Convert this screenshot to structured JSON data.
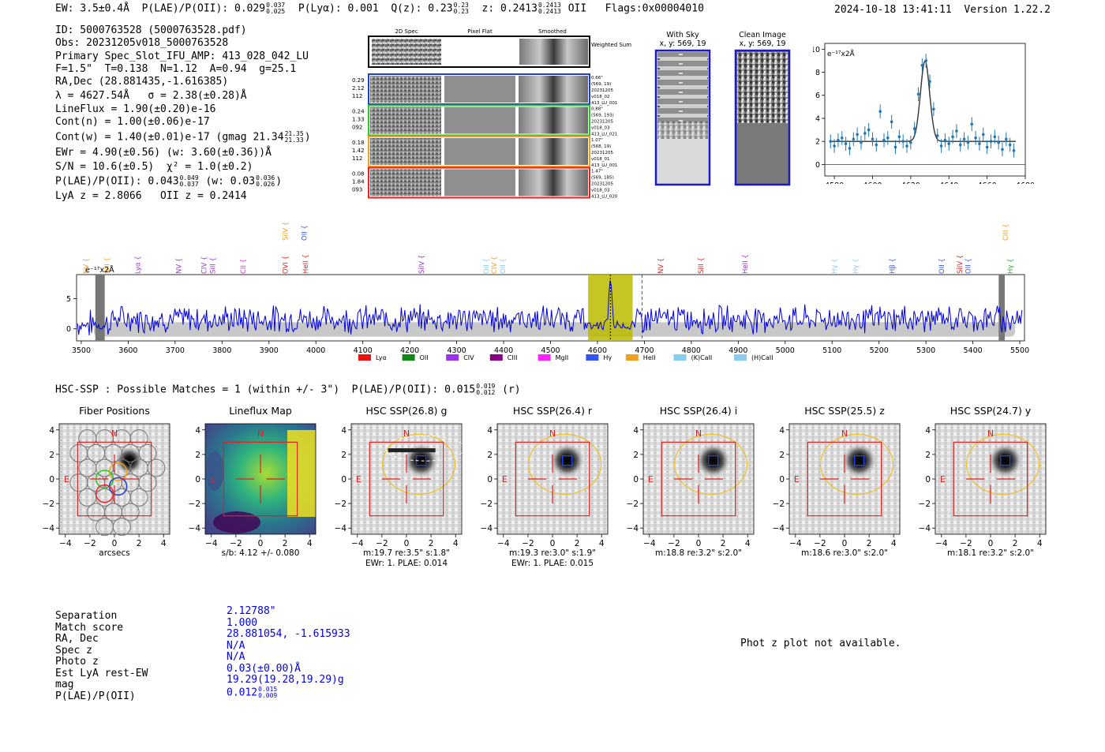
{
  "header": {
    "ew_label": "EW:",
    "ew_value": "3.5±0.4Å",
    "plae_label": "P(LAE)/P(OII):",
    "plae_value": "0.029",
    "plae_hi": "0.037",
    "plae_lo": "0.025",
    "plya_label": "P(Lyα):",
    "plya_value": "0.001",
    "q_label": "Q(z):",
    "q_value": "0.23",
    "q_hi": "0.23",
    "q_lo": "0.23",
    "z_label": "z:",
    "z_value": "0.2413",
    "z_hi": "0.2413",
    "z_lo": "0.2413",
    "z_line": "OII",
    "flags": "Flags:0x00004010",
    "datetime": "2024-10-18 13:41:11",
    "version": "Version 1.22.2"
  },
  "info": {
    "id": "ID: 5000763528 (5000763528.pdf)",
    "obs": "Obs: 20231205v018_5000763528",
    "primary": "Primary Spec_Slot_IFU_AMP: 413_028_042_LU",
    "fparams": "F=1.5\"  T=0.138  N=1.12  A=0.94  g=25.1",
    "radec": "RA,Dec (28.881435,-1.616385)",
    "lambda": "λ = 4627.54Å   σ = 2.38(±0.28)Å",
    "lineflux": "LineFlux = 1.90(±0.20)e-16",
    "contn": "Cont(n) = 1.00(±0.06)e-17",
    "contw": "Cont(w) = 1.40(±0.01)e-17 (gmag 21.34",
    "contw_hi": "21.35",
    "contw_lo": "21.33",
    "contw_end": ")",
    "ewr": "EWr = 4.90(±0.56) (w: 3.60(±0.36))Å",
    "sn": "S/N = 10.6(±0.5)  χ² = 1.0(±0.2)",
    "plae_a": "P(LAE)/P(OII): 0.043",
    "plae_a_hi": "0.049",
    "plae_a_lo": "0.037",
    "plae_b": "(w: 0.03",
    "plae_b_hi": "0.036",
    "plae_b_lo": "0.026",
    "plae_b_end": ")",
    "lya": "LyA z = 2.8066   OII z = 0.2414"
  },
  "spec2d": {
    "col_titles": [
      "2D Spec",
      "Pixel Flat",
      "Smoothed"
    ],
    "weighted_label": "Weighted Sum",
    "rows": [
      {
        "color": "#1f3fd0",
        "left": [
          "0.29",
          "2.12",
          "112"
        ],
        "right": [
          "0.66\"",
          "(569, 19)",
          "20231205",
          "v018_02",
          "413_LU_001"
        ]
      },
      {
        "color": "#22cc22",
        "left": [
          "0.24",
          "1.33",
          "092"
        ],
        "right": [
          "0.88\"",
          "(569, 193)",
          "20231205",
          "v018_03",
          "413_LU_021"
        ]
      },
      {
        "color": "#f0a020",
        "left": [
          "0.18",
          "1.42",
          "112"
        ],
        "right": [
          "1.07\"",
          "(568, 19)",
          "20231205",
          "v018_01",
          "413_LU_001"
        ]
      },
      {
        "color": "#ee2222",
        "left": [
          "0.08",
          "1.84",
          "093"
        ],
        "right": [
          "1.47\"",
          "(569, 185)",
          "20231205",
          "v018_03",
          "413_LU_020"
        ]
      }
    ]
  },
  "cutouts": {
    "withsky_title": "With Sky",
    "withsky_sub": "x, y: 569, 19",
    "clean_title": "Clean Image",
    "clean_sub": "x, y: 569, 19"
  },
  "zoom_chart": {
    "type": "scatter",
    "unit_label": "e⁻¹⁷x2Å",
    "xlim": [
      4575,
      4680
    ],
    "ylim": [
      -1,
      10.5
    ],
    "xticks": [
      4580,
      4600,
      4620,
      4640,
      4660,
      4680
    ],
    "yticks": [
      0,
      2,
      4,
      6,
      8,
      10
    ],
    "fit": {
      "continuum": 2.0,
      "center": 4627.5,
      "sigma": 2.4,
      "amp": 7.0
    },
    "points_x": [
      4578,
      4580,
      4582,
      4584,
      4586,
      4588,
      4590,
      4592,
      4594,
      4596,
      4598,
      4600,
      4602,
      4604,
      4606,
      4608,
      4610,
      4612,
      4614,
      4616,
      4618,
      4620,
      4622,
      4624,
      4626,
      4628,
      4630,
      4632,
      4634,
      4636,
      4638,
      4640,
      4642,
      4644,
      4646,
      4648,
      4650,
      4652,
      4654,
      4656,
      4658,
      4660,
      4662,
      4664,
      4666,
      4668,
      4670,
      4672,
      4674
    ],
    "points_y": [
      2.0,
      1.6,
      2.1,
      2.3,
      1.8,
      1.4,
      2.2,
      2.6,
      1.9,
      2.7,
      3.0,
      2.2,
      1.7,
      4.6,
      2.1,
      2.3,
      3.7,
      1.5,
      2.4,
      2.0,
      1.6,
      1.9,
      3.1,
      6.1,
      8.6,
      9.0,
      7.2,
      4.8,
      2.5,
      1.6,
      2.1,
      1.8,
      2.4,
      2.9,
      1.7,
      2.2,
      1.9,
      3.5,
      2.3,
      1.8,
      2.6,
      1.5,
      2.0,
      2.4,
      1.9,
      1.3,
      2.2,
      1.7,
      1.2
    ]
  },
  "spectrum": {
    "type": "line",
    "unit_label": "e⁻¹⁷x2Å",
    "xlim": [
      3490,
      5510
    ],
    "ylim": [
      -2,
      9
    ],
    "xticks": [
      3500,
      3600,
      3700,
      3800,
      3900,
      4000,
      4100,
      4200,
      4300,
      4400,
      4500,
      4600,
      4700,
      4800,
      4900,
      5000,
      5100,
      5200,
      5300,
      5400,
      5500
    ],
    "yticks": [
      0,
      5
    ],
    "highlight": [
      4580,
      4675
    ],
    "line_center": 4627.5,
    "dashed_line": 4695,
    "masked": [
      [
        3530,
        3550
      ],
      [
        5455,
        5468
      ]
    ],
    "line_labels": [
      {
        "text": "NV",
        "wave": 3510,
        "color": "#f0a020",
        "tier": 0
      },
      {
        "text": "SiII",
        "wave": 3555,
        "color": "#f0a020",
        "tier": 0
      },
      {
        "text": "Lyα",
        "wave": 3620,
        "color": "#9933cc",
        "tier": 0
      },
      {
        "text": "NV",
        "wave": 3708,
        "color": "#9933cc",
        "tier": 0
      },
      {
        "text": "CIV",
        "wave": 3762,
        "color": "#9933cc",
        "tier": 0
      },
      {
        "text": "SiII",
        "wave": 3780,
        "color": "#9933cc",
        "tier": 0
      },
      {
        "text": "CII",
        "wave": 3845,
        "color": "#dd33dd",
        "tier": 0
      },
      {
        "text": "OVI",
        "wave": 3935,
        "color": "#dd2222",
        "tier": 0
      },
      {
        "text": "HeII",
        "wave": 3978,
        "color": "#dd2222",
        "tier": 0
      },
      {
        "text": "SiIV",
        "wave": 3935,
        "color": "#f0a020",
        "tier": 1
      },
      {
        "text": "OII",
        "wave": 3975,
        "color": "#3355ee",
        "tier": 1
      },
      {
        "text": "SiIV",
        "wave": 4225,
        "color": "#9933cc",
        "tier": 0
      },
      {
        "text": "OII",
        "wave": 4363,
        "color": "#88ccee",
        "tier": 0
      },
      {
        "text": "CIV",
        "wave": 4380,
        "color": "#f0a020",
        "tier": 0
      },
      {
        "text": "OII",
        "wave": 4398,
        "color": "#88ccee",
        "tier": 0
      },
      {
        "text": "NV",
        "wave": 4735,
        "color": "#dd2222",
        "tier": 0
      },
      {
        "text": "SiII",
        "wave": 4820,
        "color": "#dd2222",
        "tier": 0
      },
      {
        "text": "HeII",
        "wave": 4915,
        "color": "#9933cc",
        "tier": 0
      },
      {
        "text": "Hγ",
        "wave": 5105,
        "color": "#88ccee",
        "tier": 0
      },
      {
        "text": "Hγ",
        "wave": 5150,
        "color": "#88ccee",
        "tier": 0
      },
      {
        "text": "Hβ",
        "wave": 5228,
        "color": "#3355ee",
        "tier": 0
      },
      {
        "text": "OII",
        "wave": 5333,
        "color": "#3355ee",
        "tier": 0
      },
      {
        "text": "SiIV",
        "wave": 5372,
        "color": "#dd2222",
        "tier": 0
      },
      {
        "text": "OII",
        "wave": 5390,
        "color": "#3355ee",
        "tier": 0
      },
      {
        "text": "CIII",
        "wave": 5470,
        "color": "#f0a020",
        "tier": 1
      },
      {
        "text": "Hγ",
        "wave": 5480,
        "color": "#22aa22",
        "tier": 0
      }
    ],
    "legend": [
      {
        "label": "Lyα",
        "color": "#ee1111"
      },
      {
        "label": "OII",
        "color": "#118811"
      },
      {
        "label": "CIV",
        "color": "#9933ee"
      },
      {
        "label": "CIII",
        "color": "#880088"
      },
      {
        "label": "MgII",
        "color": "#ff22ff"
      },
      {
        "label": "Hγ",
        "color": "#3355ee"
      },
      {
        "label": "HeII",
        "color": "#f0a020"
      },
      {
        "label": "(K)CaII",
        "color": "#88ccee"
      },
      {
        "label": "(H)CaII",
        "color": "#88ccee"
      }
    ]
  },
  "match_title": {
    "text": "HSC-SSP : Possible Matches = 1 (within +/- 3\")  P(LAE)/P(OII): 0.015",
    "hi": "0.019",
    "lo": "0.012",
    "end": "(r)"
  },
  "panels": [
    {
      "title": "Fiber Positions",
      "kind": "fiber",
      "xlabel": "arcsecs",
      "l1": "",
      "l2": ""
    },
    {
      "title": "Lineflux Map",
      "kind": "flux",
      "xlabel": "s/b: 4.12 +/- 0.080",
      "l1": "",
      "l2": ""
    },
    {
      "title": "HSC SSP(26.8) g",
      "kind": "img",
      "xlabel": "m:19.7  re:3.5\"  s:1.8\"",
      "l1": "EWr: 1. PLAE: 0.014",
      "l2": ""
    },
    {
      "title": "HSC SSP(26.4) r",
      "kind": "img",
      "xlabel": "m:19.3  re:3.0\"  s:1.9\"",
      "l1": "EWr: 1. PLAE: 0.015",
      "l2": ""
    },
    {
      "title": "HSC SSP(26.4) i",
      "kind": "img",
      "xlabel": "m:18.8  re:3.2\"  s:2.0\"",
      "l1": "",
      "l2": ""
    },
    {
      "title": "HSC SSP(25.5) z",
      "kind": "img",
      "xlabel": "m:18.6  re:3.0\"  s:2.0\"",
      "l1": "",
      "l2": ""
    },
    {
      "title": "HSC SSP(24.7) y",
      "kind": "img",
      "xlabel": "m:18.1  re:3.2\"  s:2.0\"",
      "l1": "",
      "l2": ""
    }
  ],
  "panel_common": {
    "ticks": [
      -4,
      -2,
      0,
      2,
      4
    ],
    "north": "N",
    "east": "E"
  },
  "match_table": {
    "labels": [
      "Separation",
      "Match score",
      "RA, Dec",
      "Spec z",
      "Photo z",
      "Est LyA rest-EW",
      "mag",
      "P(LAE)/P(OII)"
    ],
    "values": [
      "2.12788\"",
      "1.000",
      "28.881054, -1.615933",
      "N/A",
      "N/A",
      "0.03(±0.00)Å",
      "19.29(19.28,19.29)g",
      "0.012"
    ],
    "plae_hi": "0.015",
    "plae_lo": "0.009"
  },
  "photz_msg": "Phot z plot not available."
}
